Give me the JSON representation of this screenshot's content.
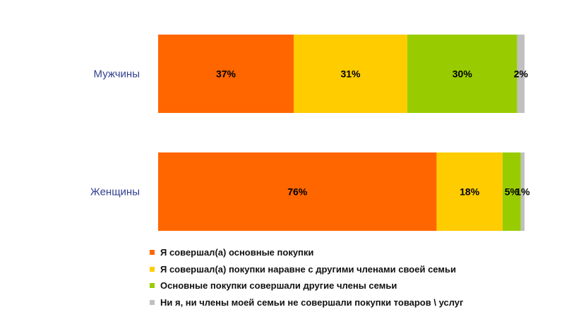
{
  "chart_data": {
    "type": "bar",
    "orientation": "horizontal",
    "stacked": true,
    "percent_stacked": true,
    "categories": [
      "Мужчины",
      "Женщины"
    ],
    "series": [
      {
        "name": "Я совершал(а) основные покупки",
        "color": "#ff6600",
        "values": [
          37,
          76
        ],
        "labels": [
          "37%",
          "76%"
        ]
      },
      {
        "name": "Я совершал(а) покупки наравне с другими членами своей семьи",
        "color": "#ffcc00",
        "values": [
          31,
          18
        ],
        "labels": [
          "31%",
          "18%"
        ]
      },
      {
        "name": "Основные покупки совершали другие члены семьи",
        "color": "#99cc00",
        "values": [
          30,
          5
        ],
        "labels": [
          "30%",
          "5%"
        ]
      },
      {
        "name": "Ни я, ни члены моей семьи не совершали покупки товаров \\ услуг",
        "color": "#c0c0c0",
        "values": [
          2,
          1
        ],
        "labels": [
          "2%",
          "1%"
        ]
      }
    ],
    "xlim": [
      0,
      100
    ],
    "grid": false,
    "legend_position": "bottom"
  }
}
